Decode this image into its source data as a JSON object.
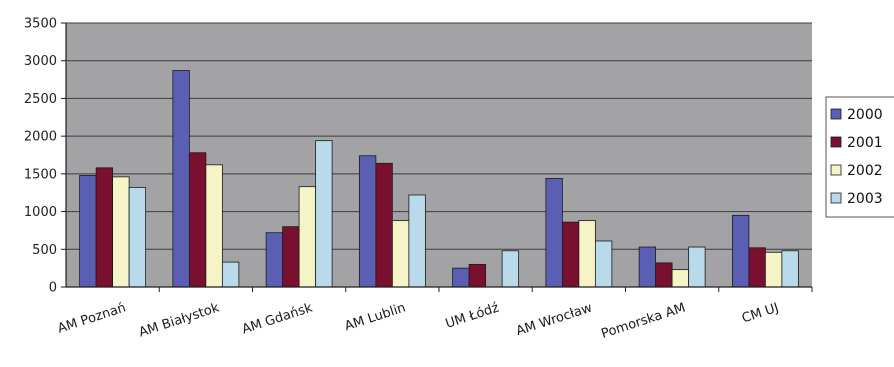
{
  "chart_data": {
    "type": "bar",
    "title": "",
    "xlabel": "",
    "ylabel": "",
    "ylim": [
      0,
      3500
    ],
    "yticks": [
      0,
      500,
      1000,
      1500,
      2000,
      2500,
      3000,
      3500
    ],
    "grid": true,
    "legend_position": "right",
    "categories": [
      "AM Poznań",
      "AM Białystok",
      "AM Gdańsk",
      "AM Lublin",
      "UM Łódź",
      "AM Wrocław",
      "Pomorska AM",
      "CM UJ"
    ],
    "series": [
      {
        "name": "2000",
        "color": "#5a5fb4",
        "values": [
          1480,
          2870,
          720,
          1740,
          250,
          1440,
          530,
          950
        ]
      },
      {
        "name": "2001",
        "color": "#7a1030",
        "values": [
          1580,
          1780,
          800,
          1640,
          300,
          860,
          320,
          520
        ]
      },
      {
        "name": "2002",
        "color": "#f6f3c6",
        "values": [
          1460,
          1620,
          1330,
          880,
          0,
          880,
          230,
          460
        ]
      },
      {
        "name": "2003",
        "color": "#b8daea",
        "values": [
          1320,
          330,
          1940,
          1220,
          480,
          610,
          530,
          480
        ]
      }
    ],
    "colors": {
      "plot_background": "#a3a3a6",
      "gridline": "#3c3c40",
      "axis": "#1e1e1e"
    }
  }
}
